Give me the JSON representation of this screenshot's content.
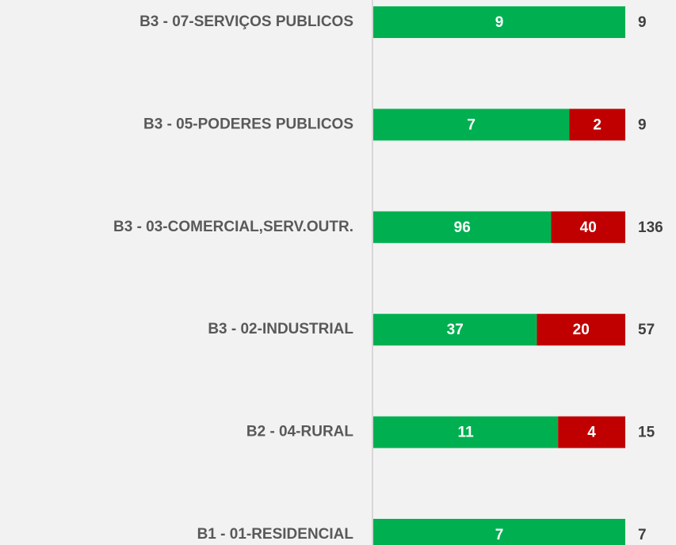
{
  "chart_data": {
    "type": "bar",
    "orientation": "horizontal",
    "stacked": "percent",
    "categories": [
      "B3 - 07-SERVIÇOS PUBLICOS",
      "B3 - 05-PODERES PUBLICOS",
      "B3 - 03-COMERCIAL,SERV.OUTR.",
      "B3 - 02-INDUSTRIAL",
      "B2 - 04-RURAL",
      "B1 - 01-RESIDENCIAL"
    ],
    "series": [
      {
        "color": "#00b050",
        "values": [
          9,
          7,
          96,
          37,
          11,
          7
        ]
      },
      {
        "color": "#c00000",
        "values": [
          null,
          2,
          40,
          20,
          4,
          null
        ]
      }
    ],
    "totals": [
      9,
      9,
      136,
      57,
      15,
      7
    ]
  }
}
